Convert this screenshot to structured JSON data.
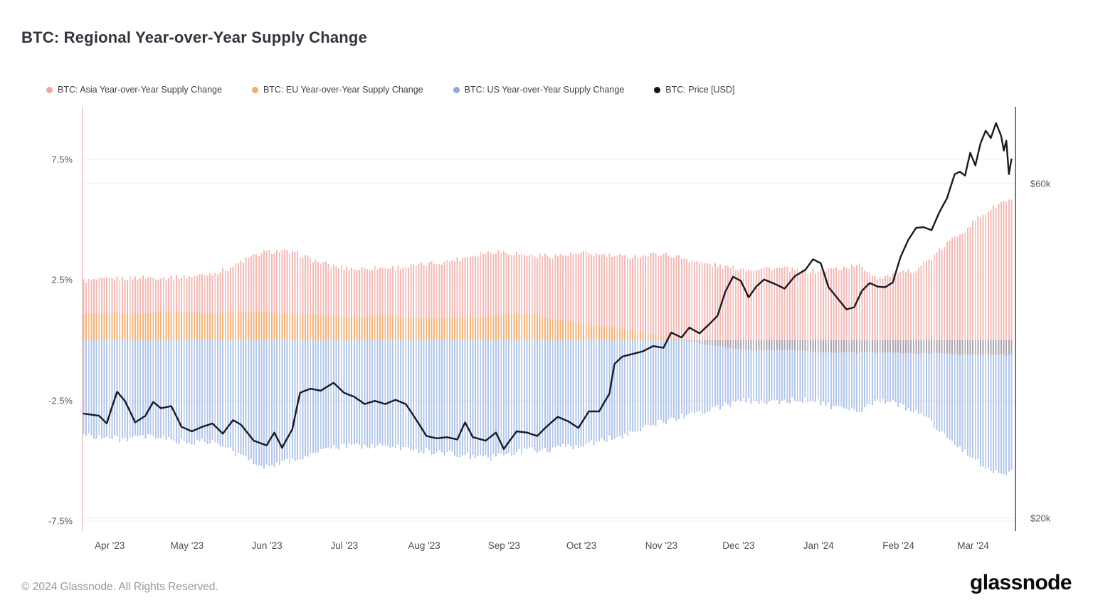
{
  "header": {
    "title": "BTC: Regional Year-over-Year Supply Change"
  },
  "legend": [
    {
      "label": "BTC: Asia Year-over-Year Supply Change",
      "color": "#f2a6a2"
    },
    {
      "label": "BTC: EU Year-over-Year Supply Change",
      "color": "#f0ad6d"
    },
    {
      "label": "BTC: US Year-over-Year Supply Change",
      "color": "#8fa9e2"
    },
    {
      "label": "BTC: Price [USD]",
      "color": "#15151c"
    }
  ],
  "axes": {
    "left_ticks": [
      {
        "label": "7.5%",
        "value": 7.5
      },
      {
        "label": "2.5%",
        "value": 2.5
      },
      {
        "label": "-2.5%",
        "value": -2.5
      },
      {
        "label": "-7.5%",
        "value": -7.5
      }
    ],
    "right_ticks": [
      {
        "label": "$60k",
        "value": 60
      },
      {
        "label": "$20k",
        "value": 20
      }
    ],
    "x_ticks": [
      "Apr '23",
      "May '23",
      "Jun '23",
      "Jul '23",
      "Aug '23",
      "Sep '23",
      "Oct '23",
      "Nov '23",
      "Dec '23",
      "Jan '24",
      "Feb '24",
      "Mar '24"
    ]
  },
  "footer": {
    "copyright": "© 2024 Glassnode. All Rights Reserved.",
    "logo": "glassnode"
  },
  "chart_data": {
    "type": "bar+line",
    "title": "BTC: Regional Year-over-Year Supply Change",
    "x_start": "2023-04-01",
    "x_step_days": 7,
    "total_days": 361,
    "month_start_days": [
      0,
      30,
      61,
      91,
      122,
      153,
      183,
      214,
      244,
      275,
      306,
      335
    ],
    "ylim_left_percent": [
      -7.9,
      9.4
    ],
    "right_axis": {
      "type": "log",
      "unit": "USD (thousands)",
      "ticks": [
        60,
        20
      ]
    },
    "grid": "faint horizontal at percent and price ticks",
    "legend_position": "top",
    "series": [
      {
        "name": "BTC: Asia Year-over-Year Supply Change",
        "axis": "left",
        "unit": "%",
        "kind": "bar",
        "color": "#f3b9b5",
        "values": [
          2.45,
          2.5,
          2.55,
          2.6,
          2.6,
          2.6,
          2.65,
          2.75,
          2.95,
          3.35,
          3.65,
          3.7,
          3.55,
          3.25,
          3.05,
          2.95,
          3.0,
          3.0,
          3.05,
          3.15,
          3.25,
          3.4,
          3.6,
          3.7,
          3.6,
          3.5,
          3.5,
          3.55,
          3.6,
          3.5,
          3.45,
          3.5,
          3.6,
          3.45,
          3.25,
          3.1,
          3.0,
          2.95,
          3.0,
          2.95,
          2.85,
          2.9,
          3.0,
          3.1,
          2.6,
          2.7,
          2.9,
          3.4,
          4.1,
          4.7,
          5.3,
          5.75
        ]
      },
      {
        "name": "BTC: EU Year-over-Year Supply Change",
        "axis": "left",
        "unit": "%",
        "kind": "bar",
        "color": "#f4b176",
        "color_negative": "#a9a1ae",
        "values": [
          1.1,
          1.1,
          1.15,
          1.1,
          1.15,
          1.2,
          1.15,
          1.1,
          1.15,
          1.15,
          1.2,
          1.1,
          1.05,
          1.05,
          1.0,
          0.95,
          1.0,
          1.0,
          0.95,
          0.9,
          0.9,
          0.95,
          0.95,
          1.0,
          1.1,
          1.05,
          0.85,
          0.75,
          0.65,
          0.55,
          0.45,
          0.3,
          0.15,
          0.05,
          -0.1,
          -0.25,
          -0.35,
          -0.4,
          -0.4,
          -0.4,
          -0.45,
          -0.5,
          -0.5,
          -0.5,
          -0.5,
          -0.5,
          -0.55,
          -0.55,
          -0.55,
          -0.6,
          -0.6,
          -0.6
        ]
      },
      {
        "name": "BTC: US Year-over-Year Supply Change",
        "axis": "left",
        "unit": "%",
        "kind": "bar",
        "color": "#b1c6ea",
        "values": [
          -3.9,
          -4.0,
          -4.1,
          -4.05,
          -4.0,
          -4.15,
          -4.25,
          -4.2,
          -4.5,
          -4.9,
          -5.2,
          -5.1,
          -4.9,
          -4.6,
          -4.45,
          -4.35,
          -4.4,
          -4.4,
          -4.5,
          -4.6,
          -4.65,
          -4.75,
          -4.9,
          -4.8,
          -4.65,
          -4.55,
          -4.5,
          -4.4,
          -4.3,
          -4.1,
          -3.9,
          -3.6,
          -3.4,
          -3.2,
          -3.0,
          -2.8,
          -2.6,
          -2.5,
          -2.55,
          -2.5,
          -2.45,
          -2.6,
          -2.9,
          -3.0,
          -2.5,
          -2.6,
          -2.9,
          -3.4,
          -4.1,
          -4.7,
          -5.3,
          -5.5
        ]
      }
    ],
    "price_series": {
      "name": "BTC: Price [USD]",
      "axis": "right",
      "unit": "USD (thousands)",
      "kind": "line",
      "color": "#1a1a24",
      "points_day_value": [
        [
          0,
          28.2
        ],
        [
          6,
          28.0
        ],
        [
          9,
          27.3
        ],
        [
          13,
          30.3
        ],
        [
          16,
          29.4
        ],
        [
          20,
          27.4
        ],
        [
          24,
          28.0
        ],
        [
          27,
          29.3
        ],
        [
          30,
          28.7
        ],
        [
          34,
          28.9
        ],
        [
          38,
          27.0
        ],
        [
          42,
          26.6
        ],
        [
          46,
          27.0
        ],
        [
          50,
          27.3
        ],
        [
          54,
          26.4
        ],
        [
          58,
          27.6
        ],
        [
          61,
          27.2
        ],
        [
          66,
          25.8
        ],
        [
          71,
          25.4
        ],
        [
          74,
          26.5
        ],
        [
          77,
          25.2
        ],
        [
          81,
          26.8
        ],
        [
          84,
          30.2
        ],
        [
          88,
          30.6
        ],
        [
          92,
          30.4
        ],
        [
          97,
          31.2
        ],
        [
          101,
          30.2
        ],
        [
          105,
          29.8
        ],
        [
          109,
          29.1
        ],
        [
          113,
          29.4
        ],
        [
          117,
          29.1
        ],
        [
          121,
          29.5
        ],
        [
          125,
          29.1
        ],
        [
          133,
          26.2
        ],
        [
          137,
          26.0
        ],
        [
          141,
          26.1
        ],
        [
          145,
          25.9
        ],
        [
          148,
          27.4
        ],
        [
          151,
          26.1
        ],
        [
          156,
          25.8
        ],
        [
          160,
          26.5
        ],
        [
          163,
          25.1
        ],
        [
          168,
          26.6
        ],
        [
          172,
          26.5
        ],
        [
          176,
          26.2
        ],
        [
          180,
          27.1
        ],
        [
          184,
          27.9
        ],
        [
          188,
          27.5
        ],
        [
          192,
          26.9
        ],
        [
          196,
          28.4
        ],
        [
          200,
          28.4
        ],
        [
          204,
          30.1
        ],
        [
          206,
          33.2
        ],
        [
          209,
          34.0
        ],
        [
          213,
          34.3
        ],
        [
          217,
          34.6
        ],
        [
          221,
          35.2
        ],
        [
          225,
          35.0
        ],
        [
          228,
          36.8
        ],
        [
          232,
          36.2
        ],
        [
          235,
          37.4
        ],
        [
          239,
          36.7
        ],
        [
          243,
          37.9
        ],
        [
          246,
          38.9
        ],
        [
          249,
          42.1
        ],
        [
          252,
          44.2
        ],
        [
          255,
          43.6
        ],
        [
          258,
          41.3
        ],
        [
          261,
          42.8
        ],
        [
          264,
          43.8
        ],
        [
          268,
          43.2
        ],
        [
          272,
          42.5
        ],
        [
          276,
          44.3
        ],
        [
          280,
          45.2
        ],
        [
          283,
          46.8
        ],
        [
          286,
          46.2
        ],
        [
          289,
          42.7
        ],
        [
          292,
          41.4
        ],
        [
          296,
          39.7
        ],
        [
          299,
          40.0
        ],
        [
          302,
          42.2
        ],
        [
          305,
          43.3
        ],
        [
          308,
          42.8
        ],
        [
          311,
          42.7
        ],
        [
          314,
          43.4
        ],
        [
          317,
          47.2
        ],
        [
          320,
          49.9
        ],
        [
          323,
          51.9
        ],
        [
          326,
          52.0
        ],
        [
          329,
          51.5
        ],
        [
          332,
          54.6
        ],
        [
          335,
          57.2
        ],
        [
          338,
          61.9
        ],
        [
          340,
          62.4
        ],
        [
          342,
          61.6
        ],
        [
          344,
          66.4
        ],
        [
          346,
          63.7
        ],
        [
          348,
          68.5
        ],
        [
          350,
          71.4
        ],
        [
          352,
          69.7
        ],
        [
          354,
          73.2
        ],
        [
          356,
          70.2
        ],
        [
          357,
          66.9
        ],
        [
          358,
          69.1
        ],
        [
          359,
          61.9
        ],
        [
          360,
          65.0
        ]
      ]
    },
    "plot_borders": {
      "left_color": "#f0c6c4",
      "right_color": "#41454d"
    },
    "gridline_color": "#f6eeee"
  }
}
